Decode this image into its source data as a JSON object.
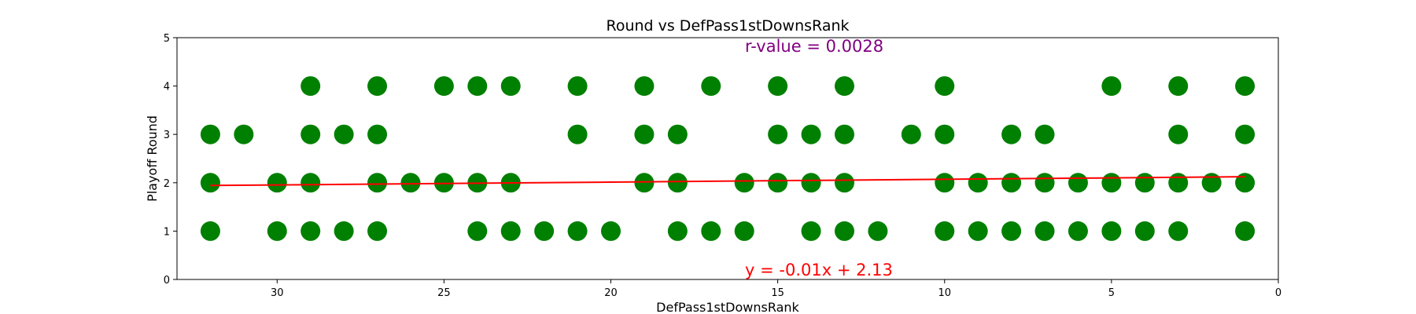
{
  "chart_data": {
    "type": "scatter",
    "title": "Round vs DefPass1stDownsRank",
    "xlabel": "DefPass1stDownsRank",
    "ylabel": "Playoff Round",
    "xlim": [
      33,
      0
    ],
    "ylim": [
      0,
      5
    ],
    "x_inverted": true,
    "xticks": [
      30,
      25,
      20,
      15,
      10,
      5,
      0
    ],
    "yticks": [
      0,
      1,
      2,
      3,
      4,
      5
    ],
    "grid": false,
    "point_color": "#008000",
    "line_color": "#ff0000",
    "r_value_color": "#800080",
    "points": [
      [
        32,
        3
      ],
      [
        32,
        2
      ],
      [
        32,
        1
      ],
      [
        31,
        3
      ],
      [
        30,
        2
      ],
      [
        30,
        1
      ],
      [
        29,
        4
      ],
      [
        29,
        3
      ],
      [
        29,
        2
      ],
      [
        29,
        1
      ],
      [
        28,
        3
      ],
      [
        28,
        1
      ],
      [
        27,
        4
      ],
      [
        27,
        3
      ],
      [
        27,
        2
      ],
      [
        27,
        1
      ],
      [
        26,
        2
      ],
      [
        25,
        4
      ],
      [
        25,
        2
      ],
      [
        24,
        4
      ],
      [
        24,
        2
      ],
      [
        24,
        1
      ],
      [
        23,
        4
      ],
      [
        23,
        2
      ],
      [
        23,
        1
      ],
      [
        22,
        1
      ],
      [
        21,
        4
      ],
      [
        21,
        3
      ],
      [
        21,
        1
      ],
      [
        20,
        1
      ],
      [
        19,
        4
      ],
      [
        19,
        3
      ],
      [
        19,
        2
      ],
      [
        18,
        3
      ],
      [
        18,
        2
      ],
      [
        18,
        1
      ],
      [
        17,
        4
      ],
      [
        17,
        1
      ],
      [
        16,
        2
      ],
      [
        16,
        1
      ],
      [
        15,
        4
      ],
      [
        15,
        3
      ],
      [
        15,
        2
      ],
      [
        14,
        3
      ],
      [
        14,
        2
      ],
      [
        14,
        1
      ],
      [
        13,
        4
      ],
      [
        13,
        3
      ],
      [
        13,
        2
      ],
      [
        13,
        1
      ],
      [
        12,
        1
      ],
      [
        11,
        3
      ],
      [
        10,
        4
      ],
      [
        10,
        3
      ],
      [
        10,
        2
      ],
      [
        10,
        1
      ],
      [
        9,
        2
      ],
      [
        9,
        1
      ],
      [
        8,
        3
      ],
      [
        8,
        2
      ],
      [
        8,
        1
      ],
      [
        7,
        3
      ],
      [
        7,
        2
      ],
      [
        7,
        1
      ],
      [
        6,
        2
      ],
      [
        6,
        1
      ],
      [
        5,
        4
      ],
      [
        5,
        2
      ],
      [
        5,
        1
      ],
      [
        4,
        2
      ],
      [
        4,
        1
      ],
      [
        3,
        4
      ],
      [
        3,
        3
      ],
      [
        3,
        2
      ],
      [
        3,
        1
      ],
      [
        2,
        2
      ],
      [
        1,
        4
      ],
      [
        1,
        3
      ],
      [
        1,
        2
      ],
      [
        1,
        1
      ]
    ],
    "fit_line": {
      "slope": -0.00585,
      "intercept": 2.1304,
      "x_start": 32,
      "x_end": 1
    },
    "annotations": {
      "r_value": "r-value = 0.0028",
      "equation": "y = -0.01x + 2.13"
    }
  }
}
